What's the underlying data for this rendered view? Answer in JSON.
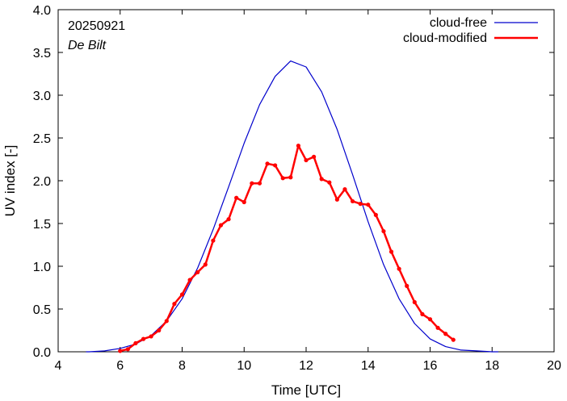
{
  "chart_data": {
    "type": "line",
    "title": "",
    "xlabel": "Time  [UTC]",
    "ylabel": "UV index  [-]",
    "xlim": [
      4,
      20
    ],
    "ylim": [
      0,
      4
    ],
    "x_ticks": [
      4,
      6,
      8,
      10,
      12,
      14,
      16,
      18,
      20
    ],
    "y_ticks": [
      0,
      0.5,
      1,
      1.5,
      2,
      2.5,
      3,
      3.5,
      4
    ],
    "x_tick_labels": [
      "4",
      "6",
      "8",
      "10",
      "12",
      "14",
      "16",
      "18",
      "20"
    ],
    "y_tick_labels": [
      "0.0",
      "0.5",
      "1.0",
      "1.5",
      "2.0",
      "2.5",
      "3.0",
      "3.5",
      "4.0"
    ],
    "grid": false,
    "legend_position": "top-right",
    "annotations": {
      "date": "20250921",
      "station": "De Bilt"
    },
    "series": [
      {
        "name": "cloud-free",
        "color": "#0000cc",
        "markers": false,
        "x": [
          4.9,
          5.0,
          5.5,
          6.0,
          6.5,
          7.0,
          7.5,
          8.0,
          8.5,
          9.0,
          9.5,
          10.0,
          10.5,
          11.0,
          11.5,
          12.0,
          12.5,
          13.0,
          13.5,
          14.0,
          14.5,
          15.0,
          15.5,
          16.0,
          16.5,
          17.0,
          17.5,
          18.0,
          18.2
        ],
        "y": [
          0.0,
          0.0,
          0.01,
          0.04,
          0.09,
          0.19,
          0.36,
          0.62,
          0.98,
          1.43,
          1.93,
          2.44,
          2.89,
          3.22,
          3.4,
          3.33,
          3.04,
          2.6,
          2.07,
          1.52,
          1.02,
          0.62,
          0.33,
          0.15,
          0.06,
          0.02,
          0.01,
          0.0,
          0.0
        ]
      },
      {
        "name": "cloud-modified",
        "color": "#ff0000",
        "markers": true,
        "x": [
          6.0,
          6.25,
          6.5,
          6.75,
          7.0,
          7.25,
          7.5,
          7.75,
          8.0,
          8.25,
          8.5,
          8.75,
          9.0,
          9.25,
          9.5,
          9.75,
          10.0,
          10.25,
          10.5,
          10.75,
          11.0,
          11.25,
          11.5,
          11.75,
          12.0,
          12.25,
          12.5,
          12.75,
          13.0,
          13.25,
          13.5,
          13.75,
          14.0,
          14.25,
          14.5,
          14.75,
          15.0,
          15.25,
          15.5,
          15.75,
          16.0,
          16.25,
          16.5,
          16.75
        ],
        "y": [
          0.01,
          0.03,
          0.1,
          0.15,
          0.18,
          0.25,
          0.36,
          0.56,
          0.67,
          0.84,
          0.93,
          1.02,
          1.3,
          1.48,
          1.55,
          1.8,
          1.75,
          1.97,
          1.97,
          2.2,
          2.18,
          2.03,
          2.04,
          2.41,
          2.24,
          2.28,
          2.02,
          1.98,
          1.78,
          1.9,
          1.76,
          1.73,
          1.72,
          1.6,
          1.41,
          1.17,
          0.97,
          0.77,
          0.58,
          0.44,
          0.38,
          0.28,
          0.21,
          0.14
        ]
      }
    ]
  }
}
